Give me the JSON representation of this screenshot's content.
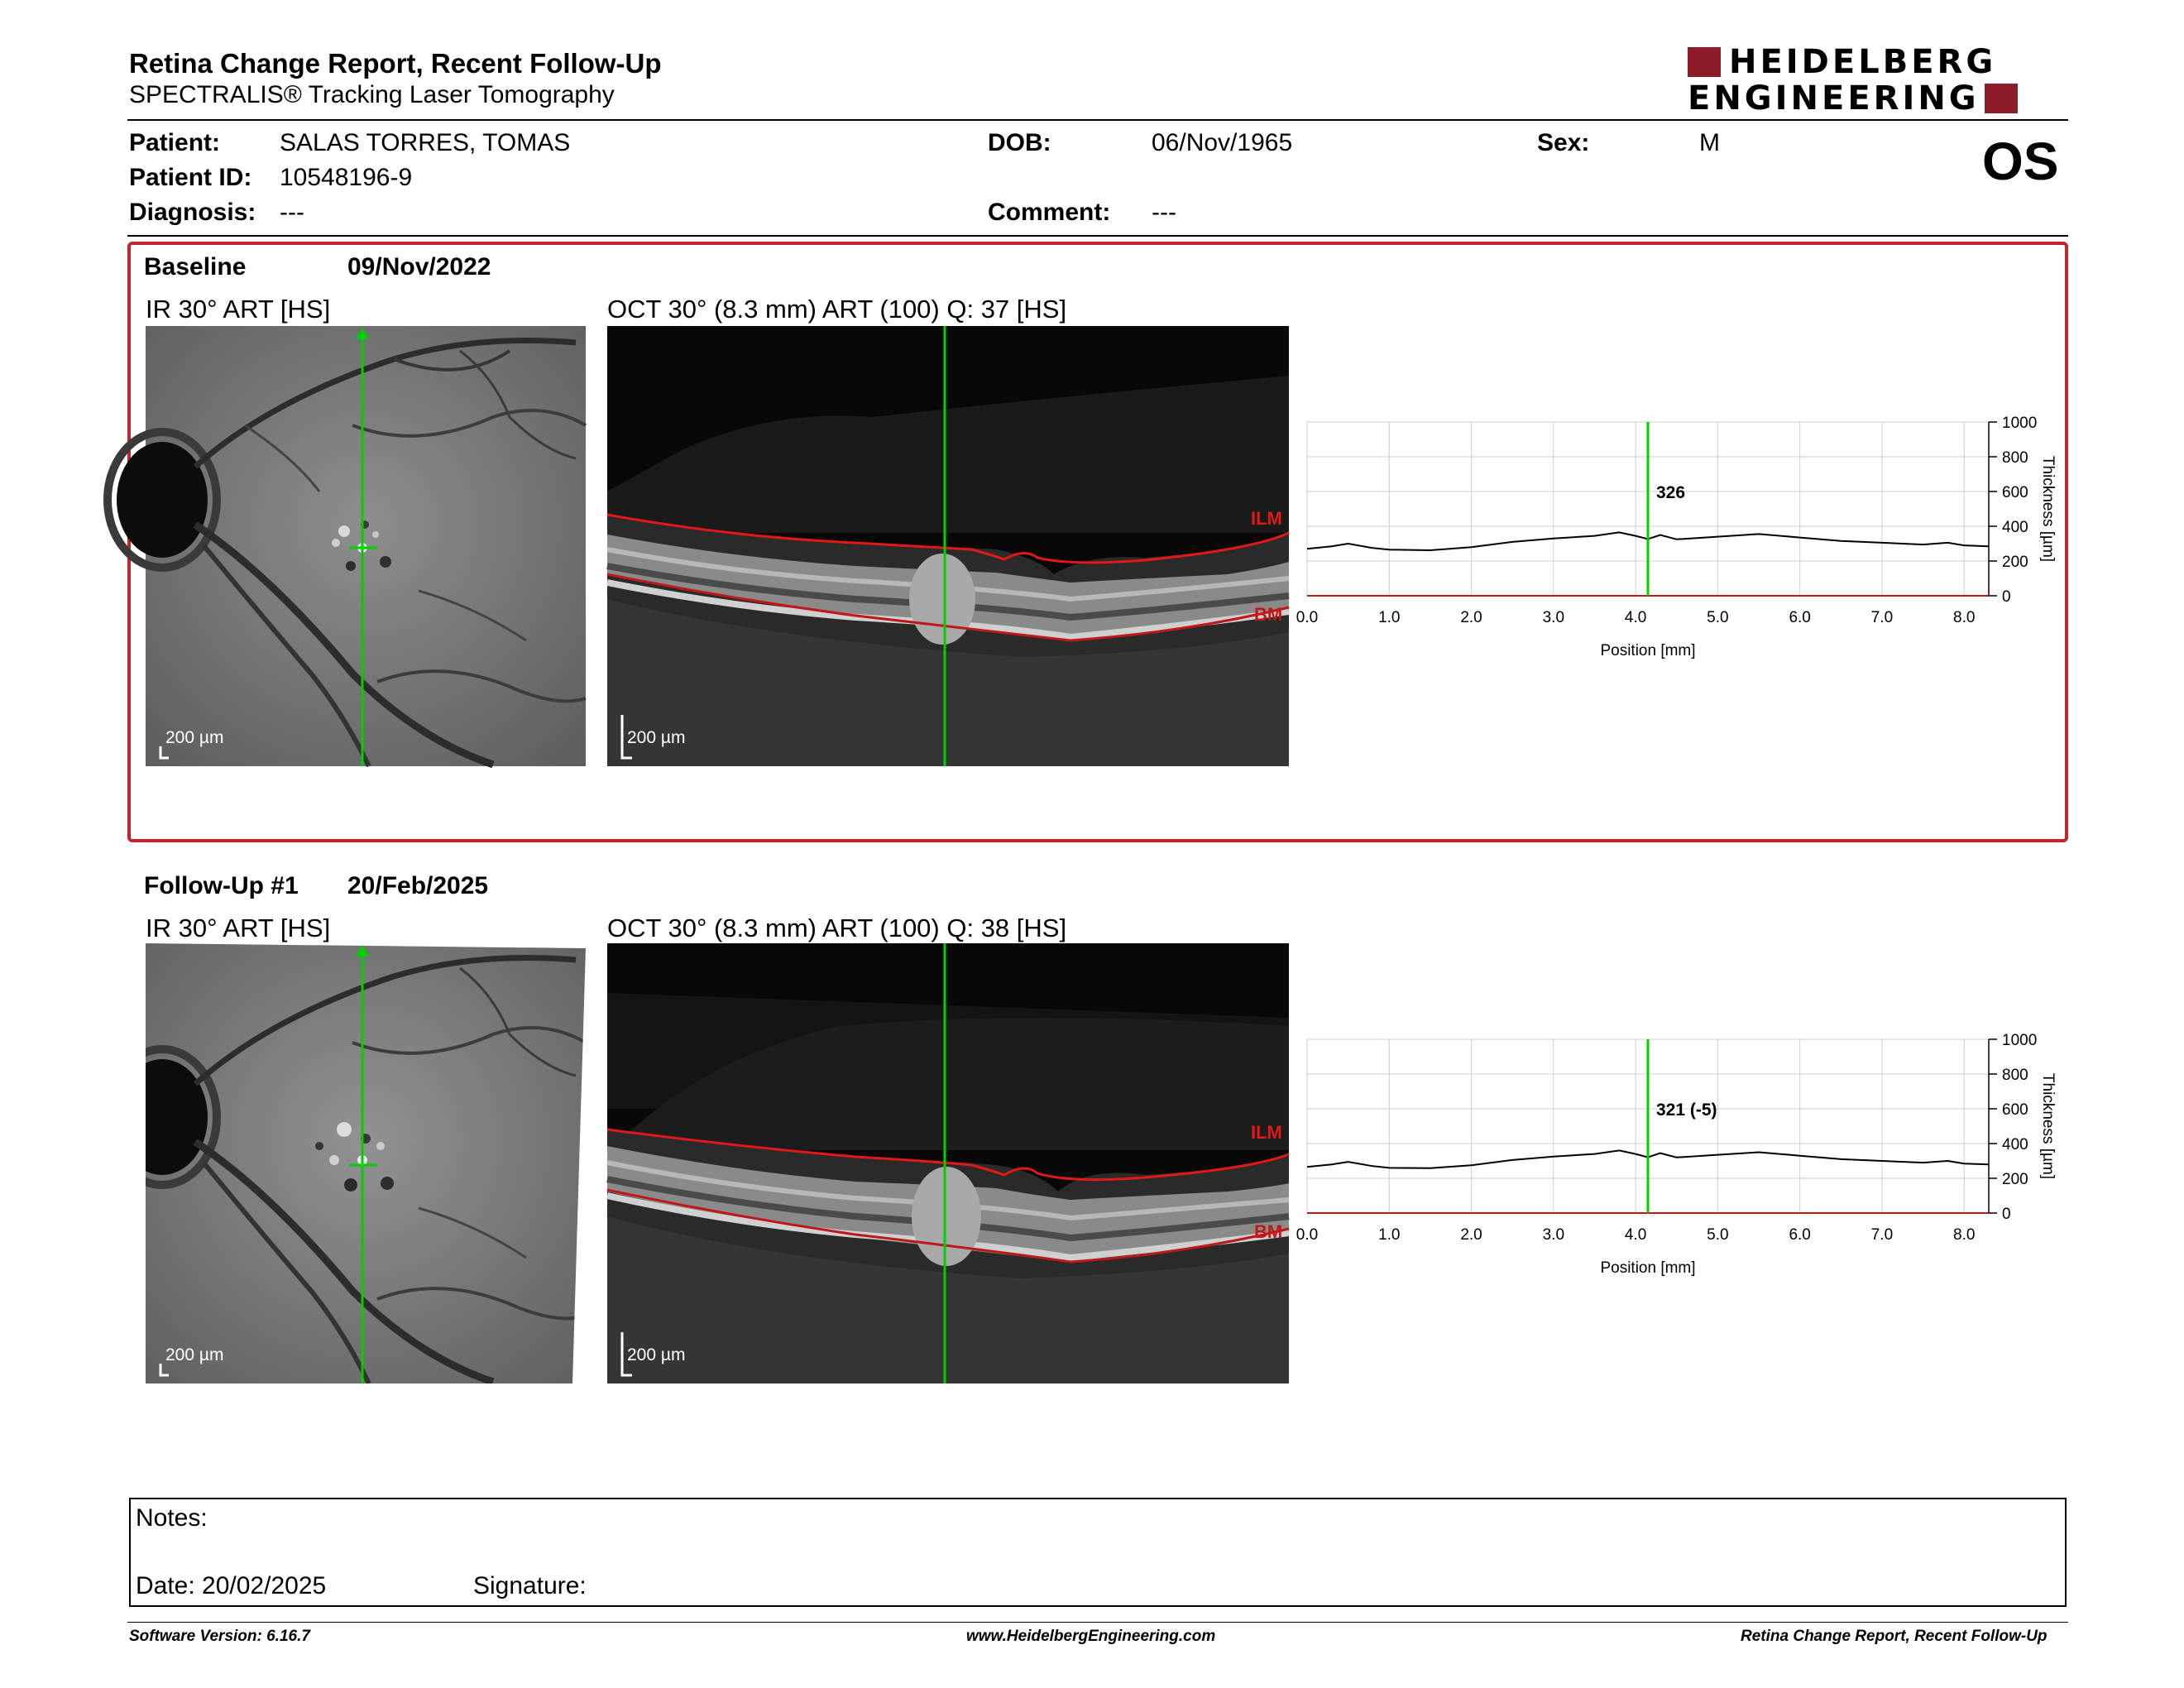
{
  "header": {
    "title": "Retina Change Report, Recent Follow-Up",
    "subtitle": "SPECTRALIS® Tracking Laser Tomography",
    "logo_line1": "HEIDELBERG",
    "logo_line2": "ENGINEERING",
    "brand_color": "#8c1a27"
  },
  "patient": {
    "patient_label": "Patient:",
    "patient_value": "SALAS TORRES, TOMAS",
    "id_label": "Patient ID:",
    "id_value": "10548196-9",
    "diagnosis_label": "Diagnosis:",
    "diagnosis_value": "---",
    "dob_label": "DOB:",
    "dob_value": "06/Nov/1965",
    "comment_label": "Comment:",
    "comment_value": "---",
    "sex_label": "Sex:",
    "sex_value": "M",
    "eye": "OS"
  },
  "baseline": {
    "label": "Baseline",
    "date": "09/Nov/2022",
    "ir_caption": "IR 30° ART [HS]",
    "oct_caption": "OCT 30° (8.3 mm) ART (100) Q: 37 [HS]",
    "scale_ir": "200 µm",
    "scale_oct": "200 µm",
    "ilm": "ILM",
    "bm": "BM"
  },
  "followup": {
    "label": "Follow-Up #1",
    "date": "20/Feb/2025",
    "ir_caption": "IR 30° ART [HS]",
    "oct_caption": "OCT 30° (8.3 mm) ART (100) Q: 38 [HS]",
    "scale_ir": "200 µm",
    "scale_oct": "200 µm",
    "ilm": "ILM",
    "bm": "BM"
  },
  "chart_data": [
    {
      "type": "line",
      "xlabel": "Position [mm]",
      "ylabel": "Thickness [µm]",
      "xlim": [
        0,
        8.3
      ],
      "ylim": [
        0,
        1000
      ],
      "x_ticks": [
        "0.0",
        "1.0",
        "2.0",
        "3.0",
        "4.0",
        "5.0",
        "6.0",
        "7.0",
        "8.0"
      ],
      "y_ticks": [
        "0",
        "200",
        "400",
        "600",
        "800",
        "1000"
      ],
      "grid": true,
      "marker_x": 4.15,
      "marker_label": "326",
      "series": [
        {
          "x": [
            0.0,
            0.3,
            0.5,
            0.8,
            1.0,
            1.5,
            2.0,
            2.5,
            3.0,
            3.5,
            3.8,
            4.0,
            4.15,
            4.3,
            4.5,
            5.0,
            5.5,
            6.0,
            6.5,
            7.0,
            7.5,
            7.8,
            8.0,
            8.3
          ],
          "y": [
            270,
            285,
            300,
            275,
            265,
            262,
            280,
            310,
            330,
            345,
            365,
            345,
            326,
            350,
            325,
            340,
            355,
            335,
            315,
            305,
            295,
            305,
            290,
            285
          ]
        }
      ]
    },
    {
      "type": "line",
      "xlabel": "Position [mm]",
      "ylabel": "Thickness [µm]",
      "xlim": [
        0,
        8.3
      ],
      "ylim": [
        0,
        1000
      ],
      "x_ticks": [
        "0.0",
        "1.0",
        "2.0",
        "3.0",
        "4.0",
        "5.0",
        "6.0",
        "7.0",
        "8.0"
      ],
      "y_ticks": [
        "0",
        "200",
        "400",
        "600",
        "800",
        "1000"
      ],
      "grid": true,
      "marker_x": 4.15,
      "marker_label": "321 (-5)",
      "series": [
        {
          "x": [
            0.0,
            0.3,
            0.5,
            0.8,
            1.0,
            1.5,
            2.0,
            2.5,
            3.0,
            3.5,
            3.8,
            4.0,
            4.15,
            4.3,
            4.5,
            5.0,
            5.5,
            6.0,
            6.5,
            7.0,
            7.5,
            7.8,
            8.0,
            8.3
          ],
          "y": [
            265,
            280,
            295,
            270,
            260,
            258,
            275,
            305,
            325,
            340,
            360,
            340,
            321,
            345,
            320,
            335,
            350,
            330,
            310,
            300,
            290,
            300,
            285,
            280
          ]
        }
      ]
    }
  ],
  "notes": {
    "notes_label": "Notes:",
    "date_text": "Date: 20/02/2025",
    "signature_label": "Signature:"
  },
  "footer": {
    "software": "Software Version: 6.16.7",
    "website": "www.HeidelbergEngineering.com",
    "report_name": "Retina Change Report, Recent Follow-Up"
  }
}
